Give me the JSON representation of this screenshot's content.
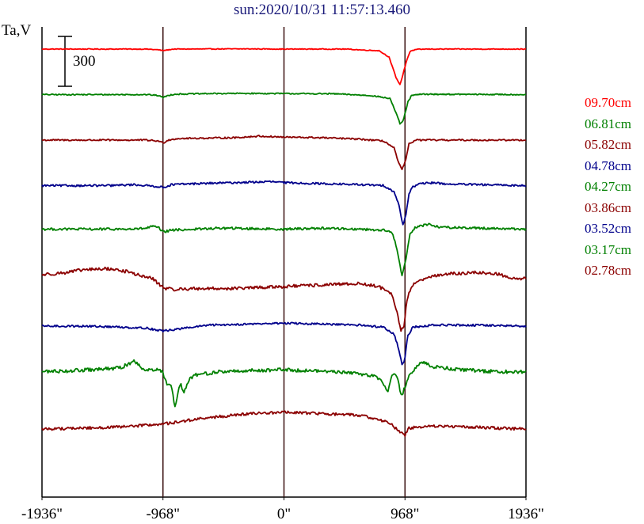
{
  "title": "sun:2020/10/31 11:57:13.460",
  "chart_data": {
    "type": "line",
    "ylabel": "Ta,V",
    "xlabel": "",
    "x_ticks": [
      -1936,
      -968,
      0,
      968,
      1936
    ],
    "x_tick_labels": [
      "-1936\"",
      "-968\"",
      "0\"",
      "968\"",
      "1936\""
    ],
    "xlim": [
      -1936,
      1936
    ],
    "vertical_markers": [
      -968,
      0,
      968
    ],
    "scale_bar": {
      "value": 300,
      "label": "300"
    },
    "grid": false,
    "legend_position": "right",
    "series": [
      {
        "name": "09.70cm",
        "color": "#ff0000",
        "baseline": 0,
        "noise": 2,
        "points": [
          [
            -1936,
            0
          ],
          [
            -1100,
            0
          ],
          [
            -1000,
            -4
          ],
          [
            -968,
            -8
          ],
          [
            -930,
            -4
          ],
          [
            -880,
            0
          ],
          [
            -300,
            1
          ],
          [
            0,
            0
          ],
          [
            500,
            0
          ],
          [
            640,
            -5
          ],
          [
            760,
            -8
          ],
          [
            840,
            -40
          ],
          [
            900,
            -150
          ],
          [
            930,
            -180
          ],
          [
            955,
            -120
          ],
          [
            980,
            -60
          ],
          [
            1010,
            -10
          ],
          [
            1060,
            -2
          ],
          [
            1150,
            0
          ],
          [
            1936,
            0
          ]
        ]
      },
      {
        "name": "06.81cm",
        "color": "#008000",
        "baseline": -230,
        "noise": 3,
        "points": [
          [
            -1936,
            0
          ],
          [
            -1100,
            0
          ],
          [
            -1000,
            -5
          ],
          [
            -968,
            -15
          ],
          [
            -930,
            -5
          ],
          [
            -880,
            2
          ],
          [
            -600,
            5
          ],
          [
            -300,
            6
          ],
          [
            0,
            5
          ],
          [
            400,
            4
          ],
          [
            700,
            -5
          ],
          [
            850,
            -20
          ],
          [
            900,
            -100
          ],
          [
            930,
            -150
          ],
          [
            955,
            -130
          ],
          [
            990,
            -40
          ],
          [
            1020,
            -5
          ],
          [
            1100,
            2
          ],
          [
            1936,
            0
          ]
        ]
      },
      {
        "name": "05.82cm",
        "color": "#8b0000",
        "baseline": -460,
        "noise": 4,
        "points": [
          [
            -1936,
            0
          ],
          [
            -1100,
            0
          ],
          [
            -1000,
            -5
          ],
          [
            -968,
            -15
          ],
          [
            -930,
            0
          ],
          [
            -850,
            8
          ],
          [
            -400,
            12
          ],
          [
            -200,
            20
          ],
          [
            0,
            15
          ],
          [
            300,
            12
          ],
          [
            600,
            5
          ],
          [
            800,
            -5
          ],
          [
            880,
            -40
          ],
          [
            920,
            -120
          ],
          [
            945,
            -150
          ],
          [
            975,
            -100
          ],
          [
            1000,
            -20
          ],
          [
            1050,
            0
          ],
          [
            1936,
            0
          ]
        ]
      },
      {
        "name": "04.78cm",
        "color": "#00008b",
        "baseline": -690,
        "noise": 5,
        "points": [
          [
            -1936,
            0
          ],
          [
            -1400,
            0
          ],
          [
            -1200,
            5
          ],
          [
            -1000,
            -5
          ],
          [
            -968,
            -10
          ],
          [
            -900,
            5
          ],
          [
            -700,
            10
          ],
          [
            -400,
            15
          ],
          [
            -100,
            20
          ],
          [
            0,
            15
          ],
          [
            300,
            10
          ],
          [
            600,
            5
          ],
          [
            800,
            0
          ],
          [
            880,
            -30
          ],
          [
            920,
            -100
          ],
          [
            950,
            -200
          ],
          [
            975,
            -150
          ],
          [
            1000,
            -40
          ],
          [
            1030,
            -5
          ],
          [
            1100,
            10
          ],
          [
            1200,
            15
          ],
          [
            1300,
            8
          ],
          [
            1936,
            0
          ]
        ]
      },
      {
        "name": "04.27cm",
        "color": "#008000",
        "baseline": -910,
        "noise": 6,
        "points": [
          [
            -1936,
            0
          ],
          [
            -1200,
            0
          ],
          [
            -1100,
            5
          ],
          [
            -1050,
            15
          ],
          [
            -1000,
            5
          ],
          [
            -968,
            -15
          ],
          [
            -900,
            -5
          ],
          [
            -700,
            0
          ],
          [
            -500,
            5
          ],
          [
            0,
            0
          ],
          [
            300,
            5
          ],
          [
            600,
            0
          ],
          [
            800,
            -5
          ],
          [
            870,
            -20
          ],
          [
            910,
            -120
          ],
          [
            945,
            -240
          ],
          [
            975,
            -150
          ],
          [
            1010,
            -20
          ],
          [
            1050,
            10
          ],
          [
            1150,
            25
          ],
          [
            1250,
            10
          ],
          [
            1936,
            0
          ]
        ]
      },
      {
        "name": "03.86cm",
        "color": "#8b0000",
        "baseline": -1140,
        "noise": 8,
        "points": [
          [
            -1936,
            0
          ],
          [
            -1750,
            10
          ],
          [
            -1600,
            25
          ],
          [
            -1400,
            30
          ],
          [
            -1250,
            15
          ],
          [
            -1150,
            -5
          ],
          [
            -1050,
            -20
          ],
          [
            -968,
            -65
          ],
          [
            -900,
            -75
          ],
          [
            -700,
            -70
          ],
          [
            -400,
            -70
          ],
          [
            -200,
            -65
          ],
          [
            0,
            -60
          ],
          [
            200,
            -55
          ],
          [
            400,
            -50
          ],
          [
            600,
            -45
          ],
          [
            760,
            -60
          ],
          [
            860,
            -100
          ],
          [
            900,
            -180
          ],
          [
            935,
            -280
          ],
          [
            960,
            -260
          ],
          [
            985,
            -120
          ],
          [
            1030,
            -50
          ],
          [
            1150,
            -10
          ],
          [
            1350,
            5
          ],
          [
            1550,
            10
          ],
          [
            1700,
            5
          ],
          [
            1800,
            -15
          ],
          [
            1936,
            -20
          ]
        ]
      },
      {
        "name": "03.52cm",
        "color": "#00008b",
        "baseline": -1400,
        "noise": 5,
        "points": [
          [
            -1936,
            0
          ],
          [
            -1600,
            0
          ],
          [
            -1300,
            -5
          ],
          [
            -1100,
            -10
          ],
          [
            -968,
            -25
          ],
          [
            -850,
            -15
          ],
          [
            -600,
            5
          ],
          [
            -300,
            10
          ],
          [
            0,
            15
          ],
          [
            300,
            10
          ],
          [
            600,
            5
          ],
          [
            800,
            -5
          ],
          [
            880,
            -40
          ],
          [
            920,
            -120
          ],
          [
            945,
            -200
          ],
          [
            965,
            -170
          ],
          [
            990,
            -50
          ],
          [
            1030,
            -5
          ],
          [
            1200,
            5
          ],
          [
            1500,
            5
          ],
          [
            1936,
            0
          ]
        ]
      },
      {
        "name": "03.17cm",
        "color": "#008000",
        "baseline": -1630,
        "noise": 9,
        "points": [
          [
            -1936,
            0
          ],
          [
            -1700,
            5
          ],
          [
            -1500,
            10
          ],
          [
            -1300,
            20
          ],
          [
            -1200,
            55
          ],
          [
            -1130,
            15
          ],
          [
            -1050,
            10
          ],
          [
            -980,
            5
          ],
          [
            -968,
            -10
          ],
          [
            -940,
            -60
          ],
          [
            -900,
            -80
          ],
          [
            -870,
            -180
          ],
          [
            -830,
            -60
          ],
          [
            -800,
            -110
          ],
          [
            -760,
            -40
          ],
          [
            -700,
            -15
          ],
          [
            -500,
            0
          ],
          [
            -300,
            5
          ],
          [
            0,
            10
          ],
          [
            200,
            5
          ],
          [
            400,
            0
          ],
          [
            600,
            -10
          ],
          [
            720,
            -20
          ],
          [
            780,
            -50
          ],
          [
            830,
            -100
          ],
          [
            860,
            -20
          ],
          [
            900,
            -10
          ],
          [
            940,
            -130
          ],
          [
            960,
            -90
          ],
          [
            1000,
            -20
          ],
          [
            1100,
            50
          ],
          [
            1200,
            25
          ],
          [
            1400,
            10
          ],
          [
            1700,
            0
          ],
          [
            1936,
            0
          ]
        ]
      },
      {
        "name": "02.78cm",
        "color": "#8b0000",
        "baseline": -1920,
        "noise": 7,
        "points": [
          [
            -1936,
            0
          ],
          [
            -1600,
            5
          ],
          [
            -1300,
            10
          ],
          [
            -1100,
            20
          ],
          [
            -968,
            25
          ],
          [
            -850,
            35
          ],
          [
            -700,
            50
          ],
          [
            -400,
            70
          ],
          [
            -200,
            80
          ],
          [
            0,
            85
          ],
          [
            200,
            80
          ],
          [
            400,
            75
          ],
          [
            600,
            70
          ],
          [
            750,
            50
          ],
          [
            850,
            30
          ],
          [
            900,
            0
          ],
          [
            940,
            -20
          ],
          [
            968,
            -30
          ],
          [
            1000,
            5
          ],
          [
            1200,
            15
          ],
          [
            1500,
            10
          ],
          [
            1700,
            5
          ],
          [
            1936,
            0
          ]
        ]
      }
    ]
  }
}
